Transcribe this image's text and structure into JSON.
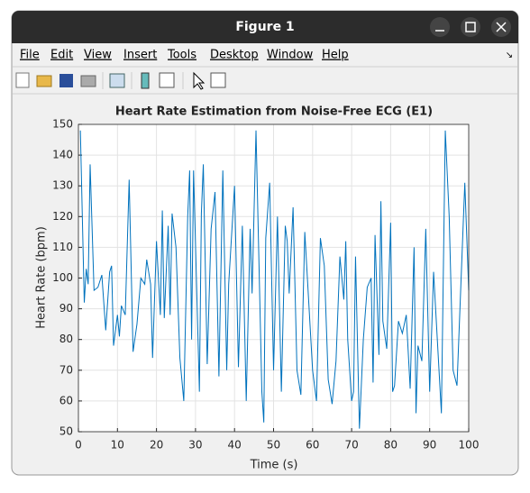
{
  "window": {
    "title": "Figure 1",
    "menu": [
      "File",
      "Edit",
      "View",
      "Insert",
      "Tools",
      "Desktop",
      "Window",
      "Help"
    ]
  },
  "chart_data": {
    "type": "line",
    "title": "Heart Rate Estimation from Noise-Free ECG (E1)",
    "xlabel": "Time (s)",
    "ylabel": "Heart Rate (bpm)",
    "xlim": [
      0,
      100
    ],
    "ylim": [
      50,
      150
    ],
    "xticks": [
      0,
      10,
      20,
      30,
      40,
      50,
      60,
      70,
      80,
      90,
      100
    ],
    "yticks": [
      50,
      60,
      70,
      80,
      90,
      100,
      110,
      120,
      130,
      140,
      150
    ],
    "grid": true,
    "series": [
      {
        "name": "Heart Rate",
        "color": "#0072bd",
        "x": [
          0.5,
          1,
          1.5,
          2,
          2.5,
          3,
          4,
          5,
          6,
          7,
          8,
          8.5,
          9,
          10,
          10.5,
          11,
          12,
          13,
          14,
          15,
          16,
          17,
          17.5,
          18.5,
          19,
          20,
          21,
          21.5,
          22,
          23,
          23.5,
          24,
          25,
          26,
          27,
          28,
          28.5,
          29,
          29.5,
          31,
          31.5,
          32,
          33,
          34,
          35,
          36,
          37,
          38,
          38.5,
          40,
          41,
          42,
          43,
          44,
          44.5,
          45.5,
          47,
          47.5,
          48,
          49,
          50,
          51,
          52,
          53,
          53.5,
          54,
          55,
          56,
          57,
          58,
          60,
          61,
          62,
          63,
          64,
          65,
          66,
          67,
          68,
          68.5,
          69,
          70,
          70.5,
          71,
          72,
          73,
          74,
          75,
          75.5,
          76,
          77,
          77.5,
          78,
          79,
          80,
          80.5,
          81,
          82,
          83,
          84,
          85,
          86,
          86.5,
          87,
          88,
          89,
          90,
          91,
          93,
          94,
          95,
          96,
          97,
          99,
          100
        ],
        "values": [
          148,
          120,
          92,
          103,
          98,
          137,
          96,
          97,
          101,
          83,
          102,
          104,
          78,
          88,
          81,
          91,
          88,
          132,
          76,
          85,
          100,
          98,
          106,
          98,
          74,
          112,
          88,
          122,
          87,
          117,
          88,
          121,
          110,
          74,
          60,
          120,
          135,
          80,
          135,
          63,
          121,
          137,
          72,
          116,
          128,
          68,
          135,
          70,
          98,
          130,
          71,
          117,
          60,
          116,
          95,
          148,
          63,
          53,
          113,
          131,
          70,
          120,
          63,
          117,
          112,
          95,
          123,
          70,
          62,
          115,
          70,
          60,
          113,
          104,
          67,
          59,
          73,
          107,
          93,
          112,
          80,
          60,
          63,
          107,
          51,
          80,
          97,
          100,
          66,
          114,
          75,
          125,
          86,
          77,
          118,
          63,
          65,
          86,
          82,
          88,
          64,
          110,
          56,
          78,
          73,
          116,
          63,
          102,
          56,
          148,
          120,
          70,
          65,
          131,
          96
        ]
      }
    ]
  }
}
